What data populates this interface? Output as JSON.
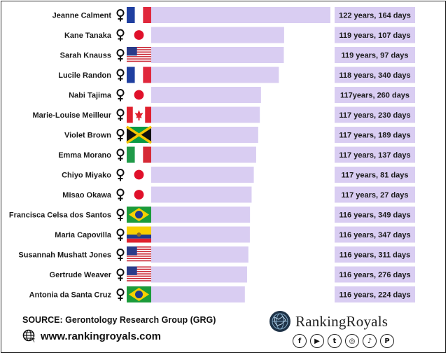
{
  "chart_data": {
    "type": "bar",
    "orientation": "horizontal",
    "categories": [
      "Jeanne Calment",
      "Kane Tanaka",
      "Sarah Knauss",
      "Lucile Randon",
      "Nabi Tajima",
      "Marie-Louise Meilleur",
      "Violet Brown",
      "Emma Morano",
      "Chiyo Miyako",
      "Misao Okawa",
      "Francisca Celsa dos Santos",
      "Maria Capovilla",
      "Susannah Mushatt Jones",
      "Gertrude Weaver",
      "Antonia  da Santa Cruz"
    ],
    "value_labels": [
      "122 years, 164 days",
      "119 years, 107 days",
      "119 years, 97 days",
      "118 years, 340 days",
      "117years, 260 days",
      "117 years, 230 days",
      "117 years, 189 days",
      "117 years, 137 days",
      "117 years, 81 days",
      "117 years, 27 days",
      "116 years, 349 days",
      "116 years, 347 days",
      "116 years, 311 days",
      "116 years, 276 days",
      "116 years, 224 days"
    ],
    "values": [
      122.45,
      119.29,
      119.27,
      118.93,
      117.71,
      117.63,
      117.52,
      117.38,
      117.22,
      117.07,
      116.96,
      116.95,
      116.85,
      116.76,
      116.61
    ],
    "flags": [
      "france",
      "japan",
      "usa",
      "france",
      "japan",
      "canada",
      "jamaica",
      "italy",
      "japan",
      "japan",
      "brazil",
      "ecuador",
      "usa",
      "usa",
      "brazil"
    ],
    "bar_color": "#d9cdf2",
    "value_box_color": "#d9cdf2",
    "icon": "female-symbol-icon"
  },
  "footer": {
    "source": "SOURCE: Gerontology Research Group (GRG)",
    "website": "www.rankingroyals.com",
    "brand": "RankingRoyals",
    "social_icons": [
      {
        "name": "facebook-icon",
        "glyph": "f"
      },
      {
        "name": "youtube-icon",
        "glyph": "▶"
      },
      {
        "name": "twitter-icon",
        "glyph": "t"
      },
      {
        "name": "instagram-icon",
        "glyph": "◎"
      },
      {
        "name": "tiktok-icon",
        "glyph": "♪"
      },
      {
        "name": "pinterest-icon",
        "glyph": "P"
      }
    ]
  }
}
